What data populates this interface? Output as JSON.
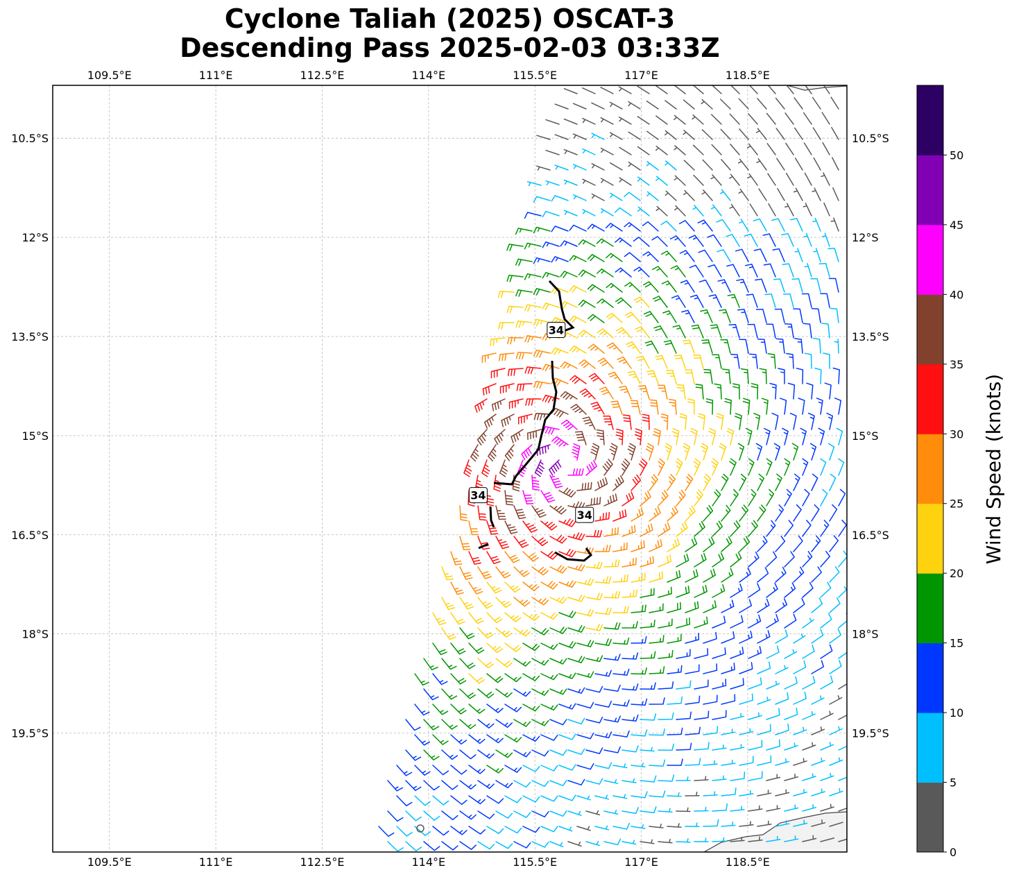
{
  "title": {
    "line1": "Cyclone Taliah (2025) OSCAT-3",
    "line2": "Descending Pass 2025-02-03 03:33Z"
  },
  "map": {
    "lon_range": [
      108.7,
      119.9
    ],
    "lat_range": [
      -21.3,
      -9.7
    ],
    "gridlines": true,
    "lon_ticks": [
      {
        "value": 109.5,
        "label": "109.5°E"
      },
      {
        "value": 111.0,
        "label": "111°E"
      },
      {
        "value": 112.5,
        "label": "112.5°E"
      },
      {
        "value": 114.0,
        "label": "114°E"
      },
      {
        "value": 115.5,
        "label": "115.5°E"
      },
      {
        "value": 117.0,
        "label": "117°E"
      },
      {
        "value": 118.5,
        "label": "118.5°E"
      }
    ],
    "lat_ticks": [
      {
        "value": -10.5,
        "label": "10.5°S"
      },
      {
        "value": -12.0,
        "label": "12°S"
      },
      {
        "value": -13.5,
        "label": "13.5°S"
      },
      {
        "value": -15.0,
        "label": "15°S"
      },
      {
        "value": -16.5,
        "label": "16.5°S"
      },
      {
        "value": -18.0,
        "label": "18°S"
      },
      {
        "value": -19.5,
        "label": "19.5°S"
      }
    ],
    "storm_center": {
      "lon": 115.9,
      "lat": -15.4
    },
    "contour_labels": [
      {
        "text": "34",
        "lon": 115.8,
        "lat": -13.4
      },
      {
        "text": "34",
        "lon": 114.7,
        "lat": -15.9
      },
      {
        "text": "34",
        "lon": 116.2,
        "lat": -16.2
      }
    ]
  },
  "colorbar": {
    "label": "Wind Speed (knots)",
    "ticks": [
      "0",
      "5",
      "10",
      "15",
      "20",
      "25",
      "30",
      "35",
      "40",
      "45",
      "50"
    ],
    "bins": [
      {
        "min": 0,
        "max": 5,
        "color": "#595959"
      },
      {
        "min": 5,
        "max": 10,
        "color": "#00bfff"
      },
      {
        "min": 10,
        "max": 15,
        "color": "#0037ff"
      },
      {
        "min": 15,
        "max": 20,
        "color": "#009600"
      },
      {
        "min": 20,
        "max": 25,
        "color": "#ffd20f"
      },
      {
        "min": 25,
        "max": 30,
        "color": "#ff8c0a"
      },
      {
        "min": 30,
        "max": 35,
        "color": "#ff0f0f"
      },
      {
        "min": 35,
        "max": 40,
        "color": "#82412d"
      },
      {
        "min": 40,
        "max": 45,
        "color": "#ff00ff"
      },
      {
        "min": 45,
        "max": 50,
        "color": "#8200b4"
      },
      {
        "min": 50,
        "max": 55,
        "color": "#2d0064"
      }
    ]
  }
}
